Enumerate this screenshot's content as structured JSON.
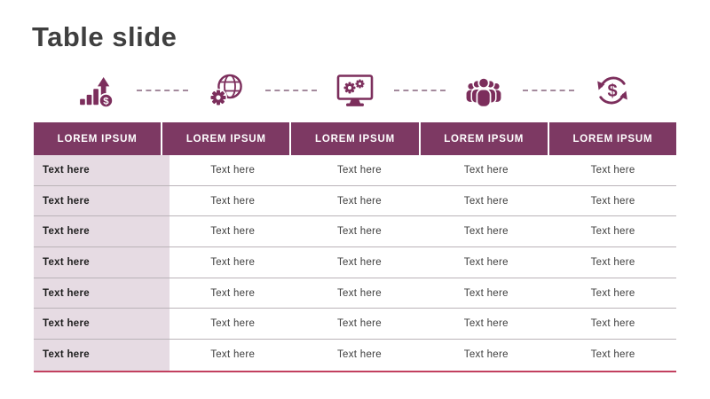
{
  "slide": {
    "title": "Table slide"
  },
  "icons": [
    {
      "name": "growth-chart-dollar-icon"
    },
    {
      "name": "globe-gear-icon"
    },
    {
      "name": "monitor-gears-icon"
    },
    {
      "name": "team-icon"
    },
    {
      "name": "dollar-cycle-icon"
    }
  ],
  "table": {
    "headers": [
      "LOREM IPSUM",
      "LOREM IPSUM",
      "LOREM IPSUM",
      "LOREM IPSUM",
      "LOREM IPSUM"
    ],
    "rows": [
      [
        "Text here",
        "Text here",
        "Text here",
        "Text here",
        "Text here"
      ],
      [
        "Text here",
        "Text here",
        "Text here",
        "Text here",
        "Text here"
      ],
      [
        "Text here",
        "Text here",
        "Text here",
        "Text here",
        "Text here"
      ],
      [
        "Text here",
        "Text here",
        "Text here",
        "Text here",
        "Text here"
      ],
      [
        "Text here",
        "Text here",
        "Text here",
        "Text here",
        "Text here"
      ],
      [
        "Text here",
        "Text here",
        "Text here",
        "Text here",
        "Text here"
      ],
      [
        "Text here",
        "Text here",
        "Text here",
        "Text here",
        "Text here"
      ]
    ]
  },
  "colors": {
    "header_bg": "#7d3963",
    "row_header_bg": "#e6dbe3",
    "icon": "#7c2e5c",
    "accent_line": "#c2405f",
    "separator": "#bab3b8",
    "title": "#3f3f3f"
  }
}
